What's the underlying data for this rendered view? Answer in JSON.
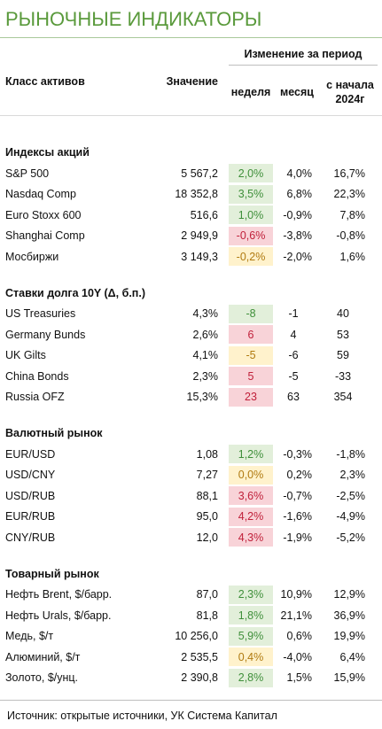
{
  "title": "РЫНОЧНЫЕ ИНДИКАТОРЫ",
  "header": {
    "group": "Изменение за период",
    "asset_class": "Класс активов",
    "value": "Значение",
    "week": "неделя",
    "month": "месяц",
    "ytd": "с начала 2024г"
  },
  "palette": {
    "green": {
      "bg": "#e2efda",
      "fg": "#3f8f3a"
    },
    "red": {
      "bg": "#f8d3d8",
      "fg": "#c0203a"
    },
    "yellow": {
      "bg": "#fff2cc",
      "fg": "#b07a10"
    }
  },
  "sections": [
    {
      "title": "Индексы акций",
      "rows": [
        {
          "name": "S&P 500",
          "value": "5 567,2",
          "week": "2,0%",
          "month": "4,0%",
          "ytd": "16,7%",
          "tone": "green"
        },
        {
          "name": "Nasdaq Comp",
          "value": "18 352,8",
          "week": "3,5%",
          "month": "6,8%",
          "ytd": "22,3%",
          "tone": "green"
        },
        {
          "name": "Euro Stoxx 600",
          "value": "516,6",
          "week": "1,0%",
          "month": "-0,9%",
          "ytd": "7,8%",
          "tone": "green"
        },
        {
          "name": "Shanghai Comp",
          "value": "2 949,9",
          "week": "-0,6%",
          "month": "-3,8%",
          "ytd": "-0,8%",
          "tone": "red"
        },
        {
          "name": "Мосбиржи",
          "value": "3 149,3",
          "week": "-0,2%",
          "month": "-2,0%",
          "ytd": "1,6%",
          "tone": "yellow"
        }
      ]
    },
    {
      "title": "Ставки долга 10Y (Δ, б.п.)",
      "rows": [
        {
          "name": "US Treasuries",
          "value": "4,3%",
          "week": "-8",
          "month": "-1",
          "ytd": "40",
          "tone": "green"
        },
        {
          "name": "Germany Bunds",
          "value": "2,6%",
          "week": "6",
          "month": "4",
          "ytd": "53",
          "tone": "red"
        },
        {
          "name": "UK Gilts",
          "value": "4,1%",
          "week": "-5",
          "month": "-6",
          "ytd": "59",
          "tone": "yellow"
        },
        {
          "name": "China Bonds",
          "value": "2,3%",
          "week": "5",
          "month": "-5",
          "ytd": "-33",
          "tone": "red"
        },
        {
          "name": "Russia OFZ",
          "value": "15,3%",
          "week": "23",
          "month": "63",
          "ytd": "354",
          "tone": "red"
        }
      ]
    },
    {
      "title": "Валютный рынок",
      "rows": [
        {
          "name": "EUR/USD",
          "value": "1,08",
          "week": "1,2%",
          "month": "-0,3%",
          "ytd": "-1,8%",
          "tone": "green"
        },
        {
          "name": "USD/CNY",
          "value": "7,27",
          "week": "0,0%",
          "month": "0,2%",
          "ytd": "2,3%",
          "tone": "yellow"
        },
        {
          "name": "USD/RUB",
          "value": "88,1",
          "week": "3,6%",
          "month": "-0,7%",
          "ytd": "-2,5%",
          "tone": "red"
        },
        {
          "name": "EUR/RUB",
          "value": "95,0",
          "week": "4,2%",
          "month": "-1,6%",
          "ytd": "-4,9%",
          "tone": "red"
        },
        {
          "name": "CNY/RUB",
          "value": "12,0",
          "week": "4,3%",
          "month": "-1,9%",
          "ytd": "-5,2%",
          "tone": "red"
        }
      ]
    },
    {
      "title": "Товарный рынок",
      "rows": [
        {
          "name": "Нефть Brent, $/барр.",
          "value": "87,0",
          "week": "2,3%",
          "month": "10,9%",
          "ytd": "12,9%",
          "tone": "green"
        },
        {
          "name": "Нефть Urals, $/барр.",
          "value": "81,8",
          "week": "1,8%",
          "month": "21,1%",
          "ytd": "36,9%",
          "tone": "green"
        },
        {
          "name": "Медь, $/т",
          "value": "10 256,0",
          "week": "5,9%",
          "month": "0,6%",
          "ytd": "19,9%",
          "tone": "green"
        },
        {
          "name": "Алюминий, $/т",
          "value": "2 535,5",
          "week": "0,4%",
          "month": "-4,0%",
          "ytd": "6,4%",
          "tone": "yellow"
        },
        {
          "name": "Золото, $/унц.",
          "value": "2 390,8",
          "week": "2,8%",
          "month": "1,5%",
          "ytd": "15,9%",
          "tone": "green"
        }
      ]
    }
  ],
  "source": "Источник: открытые источники, УК Система Капитал"
}
